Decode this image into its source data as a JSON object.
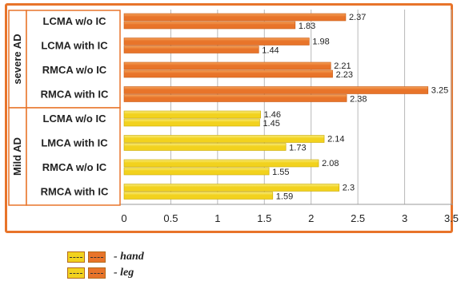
{
  "chart_data": {
    "type": "bar",
    "orientation": "horizontal",
    "groups": [
      {
        "label": "severe AD",
        "rows": [
          {
            "label": "LCMA w/o IC",
            "leg": 2.37,
            "hand": 1.83,
            "leg_label": "2.37",
            "hand_label": "1.83"
          },
          {
            "label": "LCMA with IC",
            "leg": 1.98,
            "hand": 1.44,
            "leg_label": "1.98",
            "hand_label": "1.44"
          },
          {
            "label": "RMCA w/o IC",
            "leg": 2.21,
            "hand": 2.23,
            "leg_label": "2.21",
            "hand_label": "2.23"
          },
          {
            "label": "RMCA with IC",
            "leg": 3.25,
            "hand": 2.38,
            "leg_label": "3.25",
            "hand_label": "2.38"
          }
        ]
      },
      {
        "label": "Mild AD",
        "rows": [
          {
            "label": "LCMA w/o IC",
            "leg": 1.46,
            "hand": 1.45,
            "leg_label": "1.46",
            "hand_label": "1.45"
          },
          {
            "label": "LMCA with IC",
            "leg": 2.14,
            "hand": 1.73,
            "leg_label": "2.14",
            "hand_label": "1.73"
          },
          {
            "label": "RMCA w/o IC",
            "leg": 2.08,
            "hand": 1.55,
            "leg_label": "2.08",
            "hand_label": "1.55"
          },
          {
            "label": "RMCA with IC",
            "leg": 2.3,
            "hand": 1.59,
            "leg_label": "2.3",
            "hand_label": "1.59"
          }
        ]
      }
    ],
    "xlim": [
      0,
      3.5
    ],
    "xticks": [
      "0",
      "0.5",
      "1",
      "1.5",
      "2",
      "2.5",
      "3",
      "3.5"
    ],
    "legend": [
      {
        "label": "- hand"
      },
      {
        "label": "- leg"
      }
    ],
    "colors": {
      "severe_bar": "#e8742a",
      "severe_bar_light": "#f4a25a",
      "mild_bar": "#f2d21e",
      "mild_bar_light": "#f8eb7a",
      "frame": "#e8742a",
      "grid": "#b8b8b8"
    },
    "title": "",
    "xlabel": "",
    "ylabel": ""
  }
}
